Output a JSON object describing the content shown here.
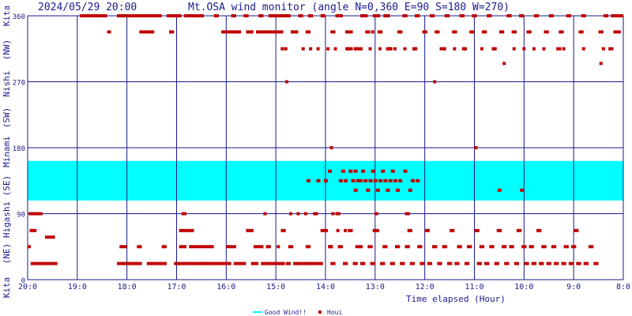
{
  "chart_data": {
    "type": "scatter",
    "timestamp": "2024/05/29 20:00",
    "title": "Mt.OSA wind monitor (angle N=0,360 E=90 S=180 W=270)",
    "xlabel": "Time elapsed (Hour)",
    "x_ticks": [
      "20:0",
      "19:0",
      "18:0",
      "17:0",
      "16:0",
      "15:0",
      "14:0",
      "13:0",
      "12:0",
      "11:0",
      "10:0",
      "9:0",
      "8:0"
    ],
    "x_range_hours": [
      0,
      12
    ],
    "y_ticks": [
      "0",
      "90",
      "180",
      "270",
      "360"
    ],
    "ylim": [
      0,
      360
    ],
    "direction_labels": [
      "Kita",
      "(NE)",
      "Higashi",
      "(SE)",
      "Minami",
      "(SW)",
      "Nishi",
      "(NW)",
      "Kita"
    ],
    "good_wind_band": [
      108,
      162
    ],
    "legend": [
      {
        "label": "Good Wind!!",
        "color": "#00ffff"
      },
      {
        "label": "Houi",
        "color": "#c00000"
      }
    ],
    "series": [
      {
        "name": "Houi",
        "color": "#c00000",
        "segments": [
          [
            0.0,
            0.04,
            45
          ],
          [
            0.02,
            0.3,
            90
          ],
          [
            0.04,
            0.18,
            67
          ],
          [
            0.06,
            0.6,
            22
          ],
          [
            0.35,
            0.55,
            58
          ],
          [
            1.05,
            1.6,
            360
          ],
          [
            1.6,
            1.68,
            338
          ],
          [
            1.8,
            2.3,
            22
          ],
          [
            1.8,
            2.7,
            360
          ],
          [
            1.85,
            2.0,
            45
          ],
          [
            2.2,
            2.3,
            45
          ],
          [
            2.25,
            2.55,
            338
          ],
          [
            2.4,
            2.8,
            22
          ],
          [
            2.7,
            2.8,
            45
          ],
          [
            2.8,
            3.1,
            360
          ],
          [
            2.85,
            2.95,
            338
          ],
          [
            2.95,
            3.25,
            22
          ],
          [
            3.05,
            3.2,
            45
          ],
          [
            3.05,
            3.35,
            67
          ],
          [
            3.1,
            3.2,
            90
          ],
          [
            3.15,
            3.4,
            360
          ],
          [
            3.2,
            3.95,
            22
          ],
          [
            3.25,
            3.75,
            45
          ],
          [
            3.3,
            3.55,
            360
          ],
          [
            3.45,
            3.55,
            22
          ],
          [
            3.75,
            3.85,
            360
          ],
          [
            3.9,
            4.2,
            338
          ],
          [
            3.95,
            4.1,
            22
          ],
          [
            4.0,
            4.2,
            45
          ],
          [
            4.1,
            4.2,
            360
          ],
          [
            4.15,
            4.3,
            338
          ],
          [
            4.15,
            4.4,
            22
          ],
          [
            4.35,
            4.45,
            360
          ],
          [
            4.4,
            4.55,
            338
          ],
          [
            4.4,
            4.55,
            67
          ],
          [
            4.5,
            4.65,
            22
          ],
          [
            4.55,
            4.75,
            45
          ],
          [
            4.6,
            4.9,
            338
          ],
          [
            4.65,
            4.75,
            360
          ],
          [
            4.7,
            5.1,
            22
          ],
          [
            4.75,
            4.8,
            90
          ],
          [
            4.8,
            4.9,
            45
          ],
          [
            4.85,
            5.1,
            360
          ],
          [
            4.9,
            5.15,
            338
          ],
          [
            5.05,
            5.3,
            360
          ],
          [
            5.05,
            5.15,
            22
          ],
          [
            5.1,
            5.2,
            67
          ],
          [
            5.2,
            5.3,
            22
          ],
          [
            5.25,
            5.35,
            45
          ],
          [
            5.3,
            5.45,
            338
          ],
          [
            5.35,
            5.55,
            22
          ],
          [
            5.45,
            5.55,
            360
          ],
          [
            5.55,
            5.75,
            22
          ],
          [
            5.6,
            5.7,
            338
          ],
          [
            5.6,
            5.7,
            45
          ],
          [
            5.65,
            5.75,
            360
          ],
          [
            5.75,
            5.85,
            22
          ],
          [
            5.75,
            5.85,
            90
          ],
          [
            5.85,
            5.95,
            22
          ],
          [
            5.9,
            6.0,
            360
          ],
          [
            5.9,
            6.05,
            67
          ],
          [
            6.05,
            6.15,
            45
          ],
          [
            6.1,
            6.2,
            22
          ],
          [
            6.1,
            6.2,
            338
          ],
          [
            6.2,
            6.35,
            360
          ],
          [
            6.2,
            6.3,
            90
          ],
          [
            6.25,
            6.35,
            45
          ],
          [
            6.35,
            6.45,
            22
          ],
          [
            6.4,
            6.55,
            338
          ],
          [
            6.4,
            6.55,
            315
          ],
          [
            6.45,
            6.55,
            67
          ],
          [
            6.55,
            6.65,
            22
          ],
          [
            6.6,
            6.75,
            45
          ],
          [
            6.65,
            6.75,
            315
          ],
          [
            6.7,
            6.85,
            360
          ],
          [
            6.7,
            6.8,
            22
          ],
          [
            6.8,
            6.9,
            338
          ],
          [
            6.85,
            6.95,
            45
          ],
          [
            6.9,
            7.0,
            22
          ],
          [
            6.95,
            7.1,
            360
          ],
          [
            6.95,
            7.05,
            67
          ],
          [
            7.0,
            7.05,
            90
          ],
          [
            7.05,
            7.15,
            338
          ],
          [
            7.1,
            7.2,
            22
          ],
          [
            7.15,
            7.25,
            45
          ],
          [
            7.2,
            7.3,
            360
          ],
          [
            7.25,
            7.35,
            315
          ],
          [
            7.3,
            7.4,
            22
          ],
          [
            7.4,
            7.5,
            45
          ],
          [
            7.45,
            7.55,
            338
          ],
          [
            7.5,
            7.6,
            22
          ],
          [
            7.55,
            7.65,
            360
          ],
          [
            7.6,
            7.7,
            45
          ],
          [
            7.6,
            7.7,
            90
          ],
          [
            7.65,
            7.75,
            67
          ],
          [
            7.7,
            7.8,
            22
          ],
          [
            7.75,
            7.85,
            315
          ],
          [
            7.8,
            7.9,
            360
          ],
          [
            7.85,
            7.95,
            45
          ],
          [
            7.9,
            8.0,
            22
          ],
          [
            7.95,
            8.05,
            338
          ],
          [
            8.0,
            8.1,
            67
          ],
          [
            8.05,
            8.15,
            22
          ],
          [
            8.1,
            8.2,
            360
          ],
          [
            8.15,
            8.25,
            45
          ],
          [
            8.2,
            8.3,
            338
          ],
          [
            8.25,
            8.35,
            22
          ],
          [
            8.3,
            8.4,
            315
          ],
          [
            8.35,
            8.45,
            45
          ],
          [
            8.4,
            8.5,
            360
          ],
          [
            8.45,
            8.55,
            22
          ],
          [
            8.5,
            8.6,
            67
          ],
          [
            8.55,
            8.65,
            338
          ],
          [
            8.6,
            8.7,
            22
          ],
          [
            8.65,
            8.75,
            45
          ],
          [
            8.7,
            8.8,
            360
          ],
          [
            8.75,
            8.85,
            315
          ],
          [
            8.8,
            8.9,
            22
          ],
          [
            8.85,
            8.95,
            45
          ],
          [
            8.9,
            9.0,
            338
          ],
          [
            8.95,
            9.05,
            360
          ],
          [
            9.0,
            9.1,
            67
          ],
          [
            9.05,
            9.15,
            22
          ],
          [
            9.1,
            9.2,
            45
          ],
          [
            9.15,
            9.25,
            338
          ],
          [
            9.2,
            9.3,
            22
          ],
          [
            9.25,
            9.35,
            360
          ],
          [
            9.3,
            9.4,
            45
          ],
          [
            9.35,
            9.45,
            315
          ],
          [
            9.4,
            9.5,
            22
          ],
          [
            9.45,
            9.55,
            67
          ],
          [
            9.5,
            9.6,
            338
          ],
          [
            9.55,
            9.65,
            45
          ],
          [
            9.6,
            9.7,
            22
          ],
          [
            9.65,
            9.75,
            360
          ],
          [
            9.7,
            9.8,
            45
          ],
          [
            9.75,
            9.85,
            338
          ],
          [
            9.8,
            9.9,
            22
          ],
          [
            9.85,
            9.95,
            67
          ],
          [
            9.9,
            10.0,
            360
          ],
          [
            9.95,
            10.05,
            45
          ],
          [
            10.0,
            10.1,
            22
          ],
          [
            10.05,
            10.15,
            338
          ],
          [
            10.1,
            10.2,
            45
          ],
          [
            10.15,
            10.25,
            22
          ],
          [
            10.2,
            10.3,
            360
          ],
          [
            10.25,
            10.35,
            67
          ],
          [
            10.3,
            10.4,
            22
          ],
          [
            10.35,
            10.45,
            45
          ],
          [
            10.4,
            10.5,
            338
          ],
          [
            10.45,
            10.55,
            22
          ],
          [
            10.5,
            10.6,
            360
          ],
          [
            10.55,
            10.65,
            45
          ],
          [
            10.6,
            10.7,
            22
          ],
          [
            10.65,
            10.75,
            315
          ],
          [
            10.7,
            10.8,
            338
          ],
          [
            10.75,
            10.85,
            22
          ],
          [
            10.8,
            10.9,
            45
          ],
          [
            10.85,
            10.95,
            360
          ],
          [
            10.9,
            11.0,
            22
          ],
          [
            10.95,
            11.05,
            45
          ],
          [
            11.0,
            11.1,
            67
          ],
          [
            11.05,
            11.15,
            22
          ],
          [
            11.1,
            11.2,
            338
          ],
          [
            11.15,
            11.25,
            360
          ],
          [
            11.2,
            11.3,
            22
          ],
          [
            11.3,
            11.4,
            45
          ],
          [
            11.4,
            11.5,
            22
          ],
          [
            11.5,
            11.6,
            338
          ],
          [
            11.6,
            11.7,
            360
          ],
          [
            11.7,
            11.8,
            315
          ],
          [
            11.75,
            12.0,
            360
          ],
          [
            11.8,
            11.95,
            338
          ]
        ],
        "points": [
          [
            5.13,
            315
          ],
          [
            5.2,
            315
          ],
          [
            5.22,
            270
          ],
          [
            5.3,
            90
          ],
          [
            5.45,
            90
          ],
          [
            5.55,
            315
          ],
          [
            5.6,
            90
          ],
          [
            5.7,
            315
          ],
          [
            5.85,
            315
          ],
          [
            5.95,
            360
          ],
          [
            6.05,
            315
          ],
          [
            6.12,
            180
          ],
          [
            6.15,
            90
          ],
          [
            6.2,
            315
          ],
          [
            6.25,
            67
          ],
          [
            6.4,
            67
          ],
          [
            6.45,
            315
          ],
          [
            6.6,
            315
          ],
          [
            6.62,
            315
          ],
          [
            6.9,
            315
          ],
          [
            6.95,
            338
          ],
          [
            7.02,
            90
          ],
          [
            7.05,
            67
          ],
          [
            7.1,
            315
          ],
          [
            7.2,
            360
          ],
          [
            7.25,
            315
          ],
          [
            7.3,
            315
          ],
          [
            7.4,
            315
          ],
          [
            7.6,
            315
          ],
          [
            7.8,
            315
          ],
          [
            8.2,
            270
          ],
          [
            8.4,
            315
          ],
          [
            8.6,
            315
          ],
          [
            8.8,
            315
          ],
          [
            9.03,
            180
          ],
          [
            9.15,
            315
          ],
          [
            9.4,
            315
          ],
          [
            9.6,
            295
          ],
          [
            9.8,
            315
          ],
          [
            10.0,
            315
          ],
          [
            10.2,
            315
          ],
          [
            10.4,
            315
          ],
          [
            10.8,
            315
          ],
          [
            11.2,
            315
          ],
          [
            11.55,
            295
          ],
          [
            11.6,
            315
          ],
          [
            5.05,
            45
          ],
          [
            5.15,
            22
          ],
          [
            6.1,
            45
          ]
        ]
      },
      {
        "name": "Houi",
        "color": "#c00000",
        "band_points": [
          [
            5.65,
            135
          ],
          [
            5.85,
            135
          ],
          [
            6.0,
            135
          ],
          [
            6.08,
            148
          ],
          [
            6.3,
            135
          ],
          [
            6.35,
            148
          ],
          [
            6.4,
            135
          ],
          [
            6.5,
            148
          ],
          [
            6.55,
            135
          ],
          [
            6.6,
            148
          ],
          [
            6.65,
            135
          ],
          [
            6.6,
            122
          ],
          [
            6.7,
            135
          ],
          [
            6.75,
            148
          ],
          [
            6.8,
            135
          ],
          [
            6.85,
            122
          ],
          [
            6.9,
            135
          ],
          [
            6.95,
            148
          ],
          [
            7.0,
            135
          ],
          [
            7.05,
            122
          ],
          [
            7.1,
            135
          ],
          [
            7.15,
            148
          ],
          [
            7.2,
            135
          ],
          [
            7.25,
            122
          ],
          [
            7.3,
            135
          ],
          [
            7.35,
            148
          ],
          [
            7.4,
            135
          ],
          [
            7.45,
            122
          ],
          [
            7.5,
            135
          ],
          [
            7.6,
            148
          ],
          [
            7.75,
            135
          ],
          [
            7.7,
            122
          ],
          [
            7.85,
            135
          ],
          [
            9.5,
            122
          ],
          [
            9.95,
            122
          ]
        ]
      }
    ]
  }
}
